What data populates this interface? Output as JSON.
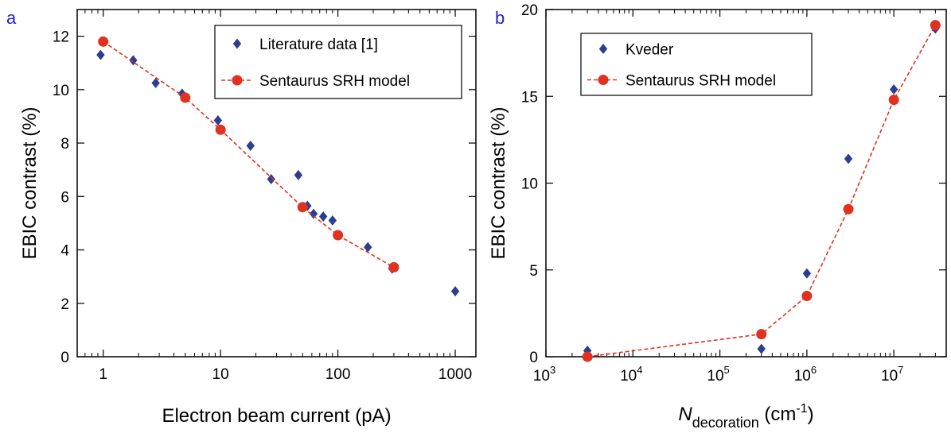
{
  "chart_data": [
    {
      "type": "scatter",
      "panel_label": "a",
      "xscale": "log",
      "xlim": [
        0.6,
        1500
      ],
      "ylim": [
        0,
        13
      ],
      "xticks": [
        1,
        10,
        100,
        1000
      ],
      "xtick_labels": [
        "1",
        "10",
        "100",
        "1000"
      ],
      "yticks": [
        0,
        2,
        4,
        6,
        8,
        10,
        12
      ],
      "ytick_labels": [
        "0",
        "2",
        "4",
        "6",
        "8",
        "10",
        "12"
      ],
      "xlabel": "Electron beam current (pA)",
      "ylabel": "EBIC contrast (%)",
      "grid": false,
      "legend_position": "top-right",
      "series": [
        {
          "name": "Literature data [1]",
          "marker": "diamond",
          "color": "#2b3f8f",
          "x": [
            0.95,
            1.8,
            2.8,
            4.7,
            9.5,
            18,
            27,
            46,
            55,
            62,
            75,
            90,
            180,
            290,
            1000
          ],
          "y": [
            11.3,
            11.1,
            10.25,
            9.85,
            8.85,
            7.9,
            6.65,
            6.8,
            5.65,
            5.35,
            5.25,
            5.1,
            4.1,
            3.3,
            2.45
          ]
        },
        {
          "name": "Sentaurus SRH model",
          "marker": "circle",
          "line": "dashed",
          "color": "#e0321e",
          "x": [
            1,
            5,
            10,
            50,
            100,
            300
          ],
          "y": [
            11.8,
            9.7,
            8.5,
            5.6,
            4.55,
            3.35
          ]
        }
      ]
    },
    {
      "type": "scatter",
      "panel_label": "b",
      "xscale": "log",
      "xlim": [
        1000,
        40000000
      ],
      "ylim": [
        0,
        20
      ],
      "xticks": [
        1000,
        10000,
        100000,
        1000000,
        10000000
      ],
      "xtick_labels": [
        {
          "base": "10",
          "exp": "3"
        },
        {
          "base": "10",
          "exp": "4"
        },
        {
          "base": "10",
          "exp": "5"
        },
        {
          "base": "10",
          "exp": "6"
        },
        {
          "base": "10",
          "exp": "7"
        }
      ],
      "yticks": [
        0,
        5,
        10,
        15,
        20
      ],
      "ytick_labels": [
        "0",
        "5",
        "10",
        "15",
        "20"
      ],
      "xlabel": {
        "n": "N",
        "sub": "decoration",
        "unit": " (cm",
        "exp": "-1",
        "close": ")"
      },
      "ylabel": "EBIC contrast (%)",
      "grid": false,
      "legend_position": "top-left",
      "series": [
        {
          "name": "Kveder",
          "marker": "diamond",
          "color": "#2b3f8f",
          "x": [
            3000,
            300000,
            1000000,
            3000000,
            10000000,
            30000000
          ],
          "y": [
            0.35,
            0.45,
            4.8,
            11.4,
            15.4,
            18.9
          ]
        },
        {
          "name": "Sentaurus SRH model",
          "marker": "circle",
          "line": "dashed",
          "color": "#e0321e",
          "x": [
            3000,
            300000,
            1000000,
            3000000,
            10000000,
            30000000
          ],
          "y": [
            0,
            1.3,
            3.5,
            8.5,
            14.8,
            19.1
          ]
        }
      ]
    }
  ]
}
